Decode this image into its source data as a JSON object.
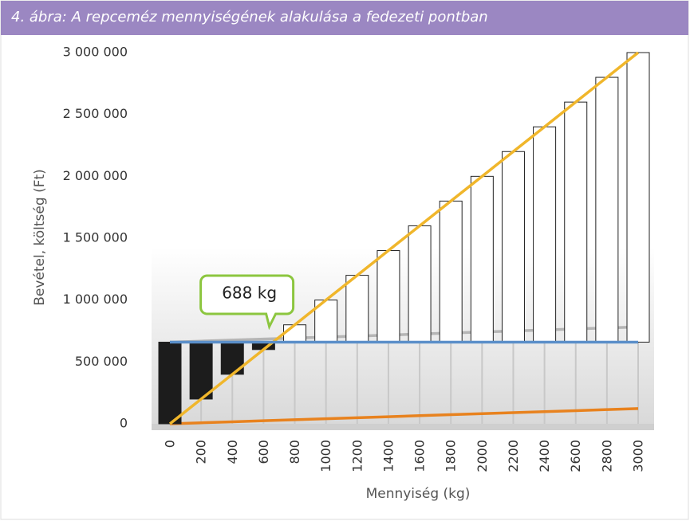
{
  "chart_data": {
    "type": "breakeven",
    "title": "4. ábra: A repceméz mennyiségének alakulása a fedezeti pontban",
    "ylabel": "Bevétel, költség (Ft)",
    "xlabel": "Mennyiség (kg)",
    "x": [
      0,
      200,
      400,
      600,
      800,
      1000,
      1200,
      1400,
      1600,
      1800,
      2000,
      2200,
      2400,
      2600,
      2800,
      3000
    ],
    "xlim": [
      0,
      3000
    ],
    "ylim": [
      0,
      3000000
    ],
    "yticks": [
      0,
      {
        "value": 500000,
        "label": "500 000"
      },
      {
        "value": 1000000,
        "label": "1 000 000"
      },
      {
        "value": 1500000,
        "label": "1 500 000"
      },
      {
        "value": 2000000,
        "label": "2 000 000"
      },
      {
        "value": 2500000,
        "label": "2 500 000"
      },
      {
        "value": 3000000,
        "label": "3 000 000"
      }
    ],
    "xgrid": true,
    "series": [
      {
        "color": "#f0b62b",
        "values": [
          0,
          200000,
          400000,
          600000,
          800000,
          1000000,
          1200000,
          1400000,
          1600000,
          1800000,
          2000000,
          2200000,
          2400000,
          2600000,
          2800000,
          3000000
        ]
      },
      {
        "color": "#5b8fc9",
        "values": [
          660000,
          660000,
          660000,
          660000,
          660000,
          660000,
          660000,
          660000,
          660000,
          660000,
          660000,
          660000,
          660000,
          660000,
          660000,
          660000
        ]
      },
      {
        "color": "#b5b5b5",
        "values": [
          660000,
          668200,
          676400,
          684600,
          692800,
          701000,
          709200,
          717400,
          725600,
          733800,
          742000,
          750200,
          758400,
          766600,
          774800,
          783000
        ]
      },
      {
        "color": "#e8821e",
        "values": [
          0,
          8200,
          16400,
          24600,
          32800,
          41000,
          49200,
          57400,
          65600,
          73800,
          82000,
          90200,
          98400,
          106600,
          114800,
          123000
        ]
      }
    ],
    "loss_color": "#1c1c1c",
    "profit_color": "#ffffff",
    "annotation": {
      "text": "688 kg",
      "x": 688,
      "color": "#8cc63f"
    }
  }
}
